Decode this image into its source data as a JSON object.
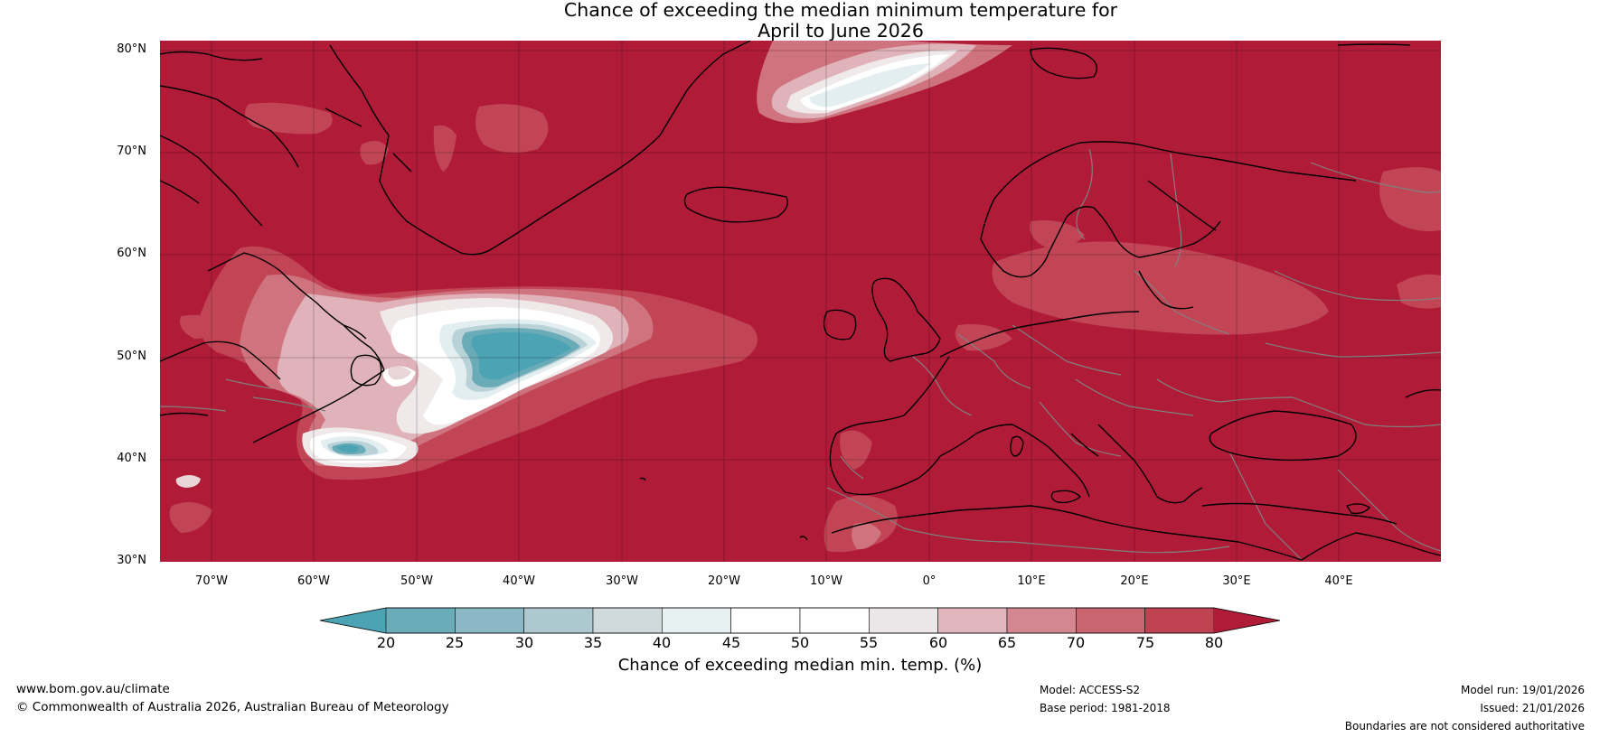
{
  "title": {
    "line1": "Chance of exceeding the median minimum temperature for",
    "line2": "April to June 2026"
  },
  "axes": {
    "lat_labels": [
      "80°N",
      "70°N",
      "60°N",
      "50°N",
      "40°N",
      "30°N"
    ],
    "lon_labels": [
      "70°W",
      "60°W",
      "50°W",
      "40°W",
      "30°W",
      "20°W",
      "10°W",
      "0°",
      "10°E",
      "20°E",
      "30°E",
      "40°E"
    ]
  },
  "colorbar": {
    "ticks": [
      "20",
      "25",
      "30",
      "35",
      "40",
      "45",
      "50",
      "55",
      "60",
      "65",
      "70",
      "75",
      "80"
    ],
    "label": "Chance of exceeding median min. temp. (%)",
    "colors": [
      "#4ba3b4",
      "#6aacb9",
      "#8bb8c4",
      "#adc8cf",
      "#d0dadd",
      "#e8f1f2",
      "#ffffff",
      "#ffffff",
      "#ebe7e8",
      "#e1b6bd",
      "#d58791",
      "#c96471",
      "#bf4252",
      "#b01c38"
    ]
  },
  "map": {
    "background_color": "#b01c38",
    "coastline_color": "#000000",
    "border_color": "#808080"
  },
  "footer": {
    "website": "www.bom.gov.au/climate",
    "copyright": "© Commonwealth of Australia 2026, Australian Bureau of Meteorology",
    "model": "Model: ACCESS-S2",
    "base_period": "Base period: 1981-2018",
    "model_run": "Model run: 19/01/2026",
    "issued": "Issued: 21/01/2026",
    "disclaimer": "Boundaries are not considered authoritative"
  }
}
